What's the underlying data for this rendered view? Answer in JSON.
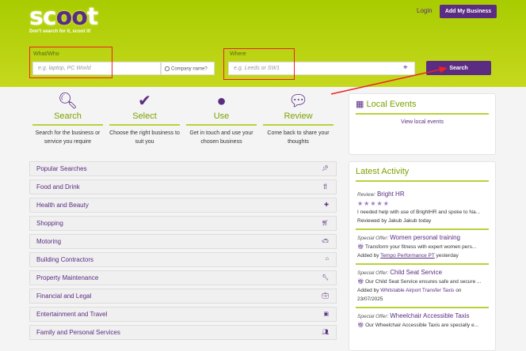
{
  "header": {
    "logo": "scoot",
    "tagline": "Don't search for it, scoot it!",
    "login": "Login",
    "add_business": "Add My Business"
  },
  "search": {
    "what_label": "What/Who",
    "what_placeholder": "e.g. laptop, PC World",
    "company_name": "Company name?",
    "where_label": "Where",
    "where_placeholder": "e.g. Leeds or SW1",
    "button": "Search"
  },
  "steps": [
    {
      "icon": "search-icon",
      "title": "Search",
      "desc": "Search for the business or service you require"
    },
    {
      "icon": "check-icon",
      "title": "Select",
      "desc": "Choose the right business to suit you"
    },
    {
      "icon": "user-icon",
      "title": "Use",
      "desc": "Get in touch and use your chosen business"
    },
    {
      "icon": "comments-icon",
      "title": "Review",
      "desc": "Come back to share your thoughts"
    }
  ],
  "categories": [
    {
      "label": "Popular Searches",
      "icon": "pin-icon"
    },
    {
      "label": "Food and Drink",
      "icon": "cutlery-icon"
    },
    {
      "label": "Health and Beauty",
      "icon": "medkit-icon"
    },
    {
      "label": "Shopping",
      "icon": "cart-icon"
    },
    {
      "label": "Motoring",
      "icon": "car-icon"
    },
    {
      "label": "Building Contractors",
      "icon": "home-icon"
    },
    {
      "label": "Property Maintenance",
      "icon": "wrench-icon"
    },
    {
      "label": "Financial and Legal",
      "icon": "briefcase-icon"
    },
    {
      "label": "Entertainment and Travel",
      "icon": "suitcase-icon"
    },
    {
      "label": "Family and Personal Services",
      "icon": "users-icon"
    }
  ],
  "local_events": {
    "title": "Local Events",
    "link": "View local events"
  },
  "latest": {
    "title": "Latest Activity",
    "items": [
      {
        "type": "Review:",
        "name": "Bright HR",
        "rating": 5,
        "text": "I needed help with use of BrightHR and spoke to Na...",
        "by": "Reviewed by Jakub Jakub today"
      },
      {
        "type": "Special Offer:",
        "name": "Women personal training",
        "text": "Transform your fitness with expert women pers...",
        "by_prefix": "Added by",
        "by_link": "Tempo Performance PT",
        "by_suffix": "yesterday"
      },
      {
        "type": "Special Offer:",
        "name": "Child Seat Service",
        "text": "Our Child Seat Service ensures safe and secure ...",
        "by_prefix": "Added by",
        "by_link": "Whitstable Airport Transfer Taxis",
        "by_suffix": "on 23/07/2025"
      },
      {
        "type": "Special Offer:",
        "name": "Wheelchair Accessible Taxis",
        "text": "Our Wheelchair Accessible Taxis are specially e..."
      }
    ]
  }
}
